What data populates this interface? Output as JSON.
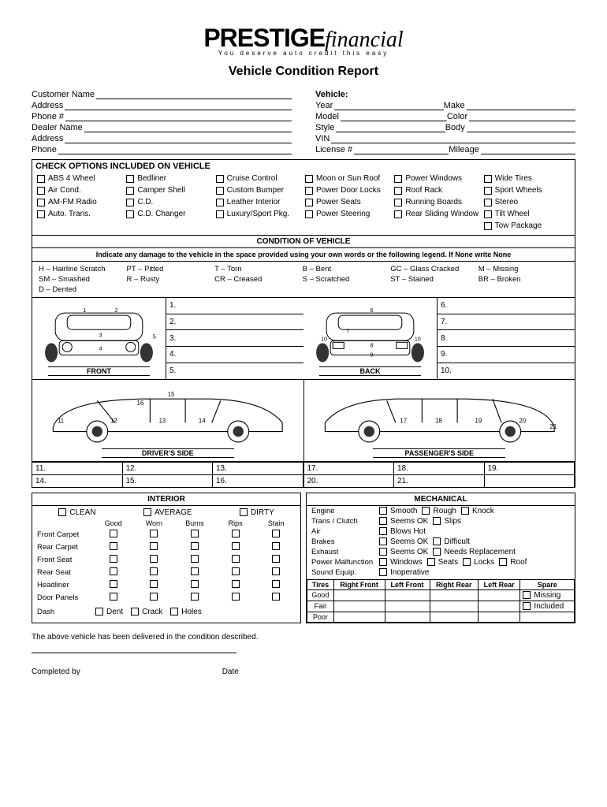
{
  "logo": {
    "main": "PRESTIGE",
    "sub": "financial",
    "tag": "You deserve auto credit this easy"
  },
  "title": "Vehicle Condition Report",
  "customer_fields_left": [
    "Customer Name",
    "Address",
    "Phone #",
    "Dealer Name",
    "Address",
    "Phone"
  ],
  "vehicle_header": "Vehicle:",
  "vehicle_fields": [
    [
      "Year",
      "Make"
    ],
    [
      "Model",
      "Color"
    ],
    [
      "Style",
      "Body"
    ],
    [
      "VIN",
      ""
    ],
    [
      "License #",
      "Mileage"
    ]
  ],
  "options_header": "CHECK OPTIONS INCLUDED ON VEHICLE",
  "options": [
    "ABS 4 Wheel",
    "Bedliner",
    "Cruise Control",
    "Moon or Sun Roof",
    "Power Windows",
    "Wide Tires",
    "Air Cond.",
    "Camper Shell",
    "Custom Bumper",
    "Power Door Locks",
    "Roof Rack",
    "Sport Wheels",
    "AM-FM Radio",
    "C.D.",
    "Leather Interior",
    "Power Seats",
    "Running Boards",
    "Stereo",
    "Auto. Trans.",
    "C.D. Changer",
    "Luxury/Sport Pkg.",
    "Power Steering",
    "Rear Sliding Window",
    "Tilt Wheel",
    "",
    "",
    "",
    "",
    "",
    "Tow Package"
  ],
  "cond_header": "CONDITION OF VEHICLE",
  "cond_note": "Indicate any damage to the vehicle in the space provided using your own words or the following legend. If None write None",
  "legend": [
    "H – Hairline Scratch",
    "PT – Pitted",
    "T – Torn",
    "B – Bent",
    "GC – Glass Cracked",
    "M – Missing",
    "SM – Smashed",
    "R – Rusty",
    "CR – Creased",
    "S – Scratched",
    "ST – Stained",
    "BR – Broken",
    "D – Dented"
  ],
  "car_labels": {
    "front": "FRONT",
    "back": "BACK",
    "driver": "DRIVER'S SIDE",
    "passenger": "PASSENGER'S SIDE"
  },
  "front_nums": [
    "1.",
    "2.",
    "3.",
    "4.",
    "5."
  ],
  "back_nums": [
    "6.",
    "7.",
    "8.",
    "9.",
    "10."
  ],
  "driver_nums": [
    "11.",
    "12.",
    "13.",
    "14.",
    "15.",
    "16."
  ],
  "pass_nums": [
    "17.",
    "18.",
    "19.",
    "20.",
    "21.",
    ""
  ],
  "interior": {
    "header": "INTERIOR",
    "top": [
      "CLEAN",
      "AVERAGE",
      "DIRTY"
    ],
    "cols": [
      "Good",
      "Worn",
      "Burns",
      "Rips",
      "Stain"
    ],
    "rows": [
      "Front Carpet",
      "Rear Carpet",
      "Front Seat",
      "Rear Seat",
      "Headliner",
      "Door Panels",
      "Dash"
    ],
    "dash_opts": [
      "Dent",
      "Crack",
      "Holes"
    ]
  },
  "mechanical": {
    "header": "MECHANICAL",
    "rows": [
      {
        "l": "Engine",
        "o": [
          "Smooth",
          "Rough",
          "Knock"
        ]
      },
      {
        "l": "Trans / Clutch",
        "o": [
          "Seems OK",
          "Slips"
        ]
      },
      {
        "l": "Air",
        "o": [
          "Blows Hot"
        ]
      },
      {
        "l": "Brakes",
        "o": [
          "Seems OK",
          "Difficult"
        ]
      },
      {
        "l": "Exhaust",
        "o": [
          "Seems OK",
          "Needs Replacement"
        ]
      },
      {
        "l": "Power Malfunction",
        "o": [
          "Windows",
          "Seats",
          "Locks",
          "Roof"
        ]
      },
      {
        "l": "Sound Equip.",
        "o": [
          "Inoperative"
        ]
      }
    ],
    "tires_header": "Tires",
    "tires_cols": [
      "Right Front",
      "Left Front",
      "Right Rear",
      "Left Rear",
      "Spare"
    ],
    "tires_rows": [
      "Good",
      "Fair",
      "Poor"
    ],
    "spare_opts": [
      "Missing",
      "Included"
    ]
  },
  "footer_text": "The above vehicle has been delivered in the condition described.",
  "sig": {
    "by": "Completed by",
    "date": "Date"
  },
  "colors": {
    "line": "#000000",
    "bg": "#ffffff"
  }
}
